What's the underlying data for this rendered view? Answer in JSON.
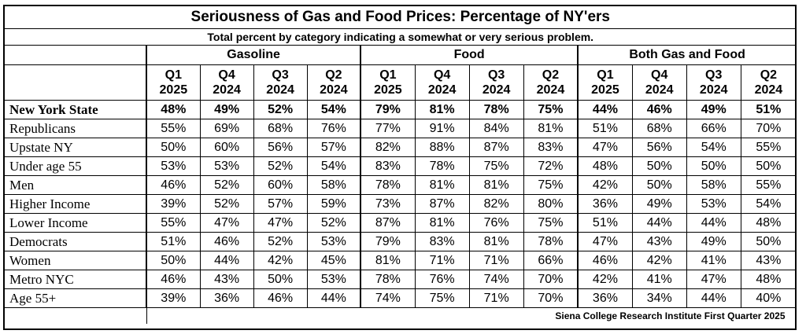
{
  "chart_data": {
    "type": "table",
    "title": "Seriousness of Gas and Food Prices:  Percentage of NY'ers",
    "subtitle": "Total percent by category indicating a somewhat or very serious problem.",
    "footer": "Siena College Research Institute First Quarter 2025",
    "groups": [
      "Gasoline",
      "Food",
      "Both Gas and Food"
    ],
    "periods": [
      {
        "q": "Q1",
        "y": "2025"
      },
      {
        "q": "Q4",
        "y": "2024"
      },
      {
        "q": "Q3",
        "y": "2024"
      },
      {
        "q": "Q2",
        "y": "2024"
      }
    ],
    "rows": [
      {
        "label": "New York State",
        "bold": true,
        "values": [
          "48%",
          "49%",
          "52%",
          "54%",
          "79%",
          "81%",
          "78%",
          "75%",
          "44%",
          "46%",
          "49%",
          "51%"
        ]
      },
      {
        "label": "Republicans",
        "bold": false,
        "values": [
          "55%",
          "69%",
          "68%",
          "76%",
          "77%",
          "91%",
          "84%",
          "81%",
          "51%",
          "68%",
          "66%",
          "70%"
        ]
      },
      {
        "label": "Upstate NY",
        "bold": false,
        "values": [
          "50%",
          "60%",
          "56%",
          "57%",
          "82%",
          "88%",
          "87%",
          "83%",
          "47%",
          "56%",
          "54%",
          "55%"
        ]
      },
      {
        "label": "Under age 55",
        "bold": false,
        "values": [
          "53%",
          "53%",
          "52%",
          "54%",
          "83%",
          "78%",
          "75%",
          "72%",
          "48%",
          "50%",
          "50%",
          "50%"
        ]
      },
      {
        "label": "Men",
        "bold": false,
        "values": [
          "46%",
          "52%",
          "60%",
          "58%",
          "78%",
          "81%",
          "81%",
          "75%",
          "42%",
          "50%",
          "58%",
          "55%"
        ]
      },
      {
        "label": "Higher Income",
        "bold": false,
        "values": [
          "39%",
          "52%",
          "57%",
          "59%",
          "73%",
          "87%",
          "82%",
          "80%",
          "36%",
          "49%",
          "53%",
          "54%"
        ]
      },
      {
        "label": "Lower Income",
        "bold": false,
        "values": [
          "55%",
          "47%",
          "47%",
          "52%",
          "87%",
          "81%",
          "76%",
          "75%",
          "51%",
          "44%",
          "44%",
          "48%"
        ]
      },
      {
        "label": "Democrats",
        "bold": false,
        "values": [
          "51%",
          "46%",
          "52%",
          "53%",
          "79%",
          "83%",
          "81%",
          "78%",
          "47%",
          "43%",
          "49%",
          "50%"
        ]
      },
      {
        "label": "Women",
        "bold": false,
        "values": [
          "50%",
          "44%",
          "42%",
          "45%",
          "81%",
          "71%",
          "71%",
          "66%",
          "46%",
          "42%",
          "41%",
          "43%"
        ]
      },
      {
        "label": "Metro NYC",
        "bold": false,
        "values": [
          "46%",
          "43%",
          "50%",
          "53%",
          "78%",
          "76%",
          "74%",
          "70%",
          "42%",
          "41%",
          "47%",
          "48%"
        ]
      },
      {
        "label": "Age 55+",
        "bold": false,
        "values": [
          "39%",
          "36%",
          "46%",
          "44%",
          "74%",
          "75%",
          "71%",
          "70%",
          "36%",
          "34%",
          "44%",
          "40%"
        ]
      }
    ]
  }
}
